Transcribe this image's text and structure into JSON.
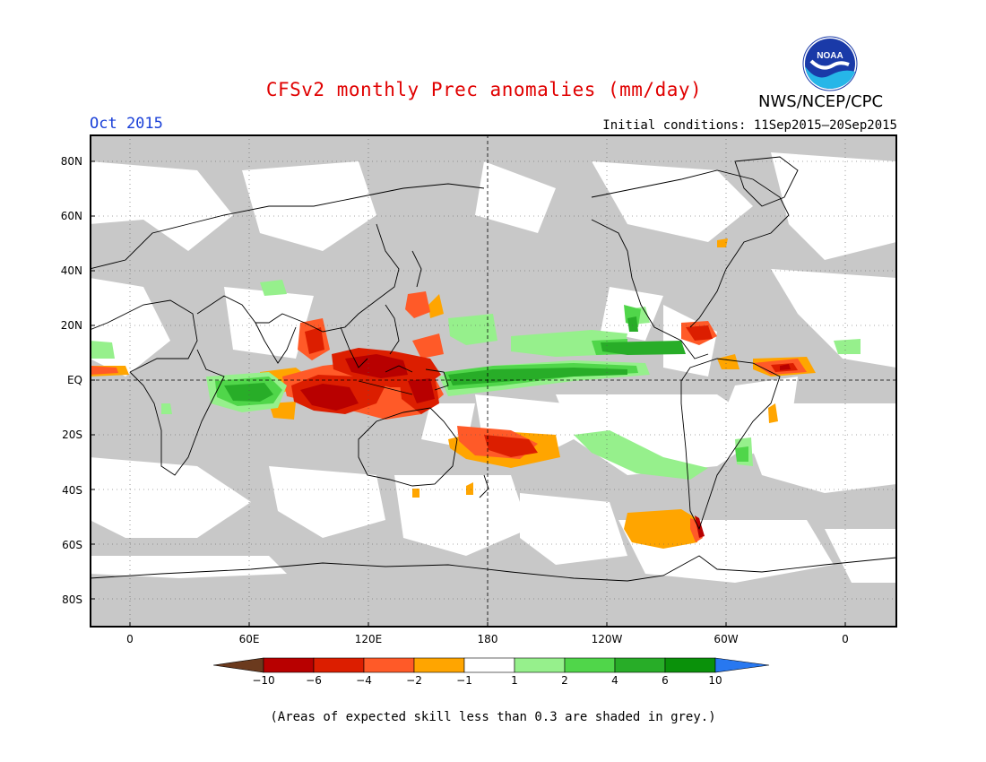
{
  "title": "CFSv2 monthly Prec anomalies (mm/day)",
  "period": "Oct 2015",
  "initial_conditions": "Initial conditions: 11Sep2015–20Sep2015",
  "agency": "NWS/NCEP/CPC",
  "logo_text": "NOAA",
  "lat_labels": [
    "80N",
    "60N",
    "40N",
    "20N",
    "EQ",
    "20S",
    "40S",
    "60S",
    "80S"
  ],
  "lon_labels": [
    "0",
    "60E",
    "120E",
    "180",
    "120W",
    "60W",
    "0"
  ],
  "colorbar": {
    "labels": [
      "−10",
      "−6",
      "−4",
      "−2",
      "−1",
      "1",
      "2",
      "4",
      "6",
      "10"
    ],
    "colors": [
      "#6b3a1e",
      "#b80000",
      "#dc1e00",
      "#ff5a28",
      "#ffa500",
      "#ffffff",
      "#96f08c",
      "#50d64a",
      "#28ad28",
      "#0a910a",
      "#2878f0"
    ]
  },
  "footnote": "(Areas of expected skill less than 0.3 are shaded in grey.)",
  "colors": {
    "grey_mask": "#c8c8c8",
    "land_line": "#000000"
  }
}
